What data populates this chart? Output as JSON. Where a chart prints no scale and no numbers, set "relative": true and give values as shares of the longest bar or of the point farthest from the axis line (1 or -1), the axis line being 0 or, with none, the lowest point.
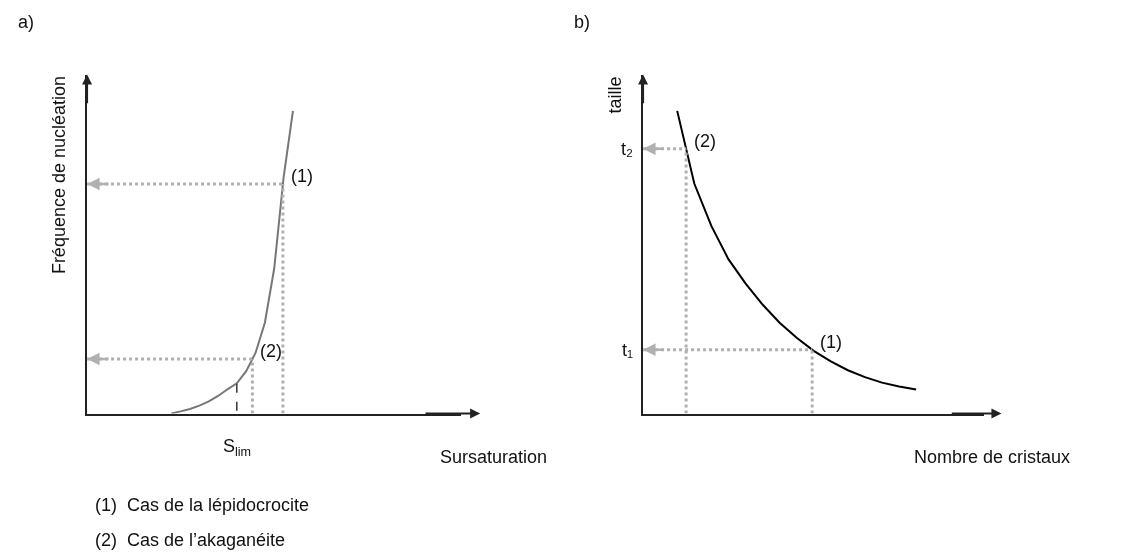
{
  "chart_data": [
    {
      "type": "line",
      "title": "a)",
      "xlabel": "Sursaturation",
      "ylabel": "Fréquence de nucléation",
      "relative": true,
      "categories": [
        null,
        null,
        null,
        null,
        null,
        null,
        null,
        null,
        null,
        null,
        null,
        null,
        null,
        null,
        null,
        null,
        null,
        null,
        null,
        null,
        null,
        null,
        null,
        null,
        null,
        null,
        null,
        null,
        null,
        null,
        null,
        null,
        null,
        null,
        null,
        null,
        null,
        null,
        null,
        null,
        null
      ],
      "series": [
        {
          "color": "#777777",
          "values": [
            null,
            null,
            null,
            null,
            null,
            null,
            null,
            null,
            null,
            0,
            0.007,
            0.015,
            0.026,
            0.04,
            0.058,
            0.08,
            0.1,
            0.14,
            0.2,
            0.3,
            0.48,
            0.78,
            1,
            null,
            null,
            null,
            null,
            null,
            null,
            null,
            null,
            null,
            null,
            null,
            null,
            null,
            null,
            null,
            null,
            null,
            null
          ]
        }
      ],
      "ref_lines": [
        {
          "axis": "y",
          "value": 0.758,
          "color": "#b0b0b0",
          "line_style": "dotted"
        },
        {
          "axis": "y",
          "value": 0.18,
          "color": "#b0b0b0",
          "line_style": "dotted"
        }
      ],
      "annotations": [
        "(1)",
        "(2)",
        {
          "text": "S$_{lim}$",
          "y": 0.1
        },
        "(1)  Cas de la lépidocrocite",
        "(2)  Cas de l’akaganéite"
      ]
    },
    {
      "type": "line",
      "title": "b)",
      "xlabel": "Nombre de cristaux",
      "ylabel": "taille",
      "relative": true,
      "categories": [
        null,
        null,
        null,
        null,
        null,
        null,
        null,
        null,
        null,
        null,
        null,
        null,
        null,
        null,
        null,
        null,
        null,
        null,
        null,
        null,
        null
      ],
      "series": [
        {
          "color": "#000000",
          "values": [
            null,
            null,
            1,
            0.76,
            0.62,
            0.51,
            0.43,
            0.36,
            0.3,
            0.25,
            0.207,
            0.172,
            0.143,
            0.12,
            0.102,
            0.089,
            0.079,
            null,
            null,
            null,
            null
          ]
        }
      ],
      "ref_lines": [
        {
          "axis": "y",
          "value": 0.875,
          "label": "t₂",
          "color": "#b0b0b0",
          "line_style": "dotted"
        },
        {
          "axis": "y",
          "value": 0.211,
          "label": "t₁",
          "color": "#b0b0b0",
          "line_style": "dotted"
        }
      ],
      "annotations": [
        "(2)",
        "(1)"
      ]
    }
  ]
}
